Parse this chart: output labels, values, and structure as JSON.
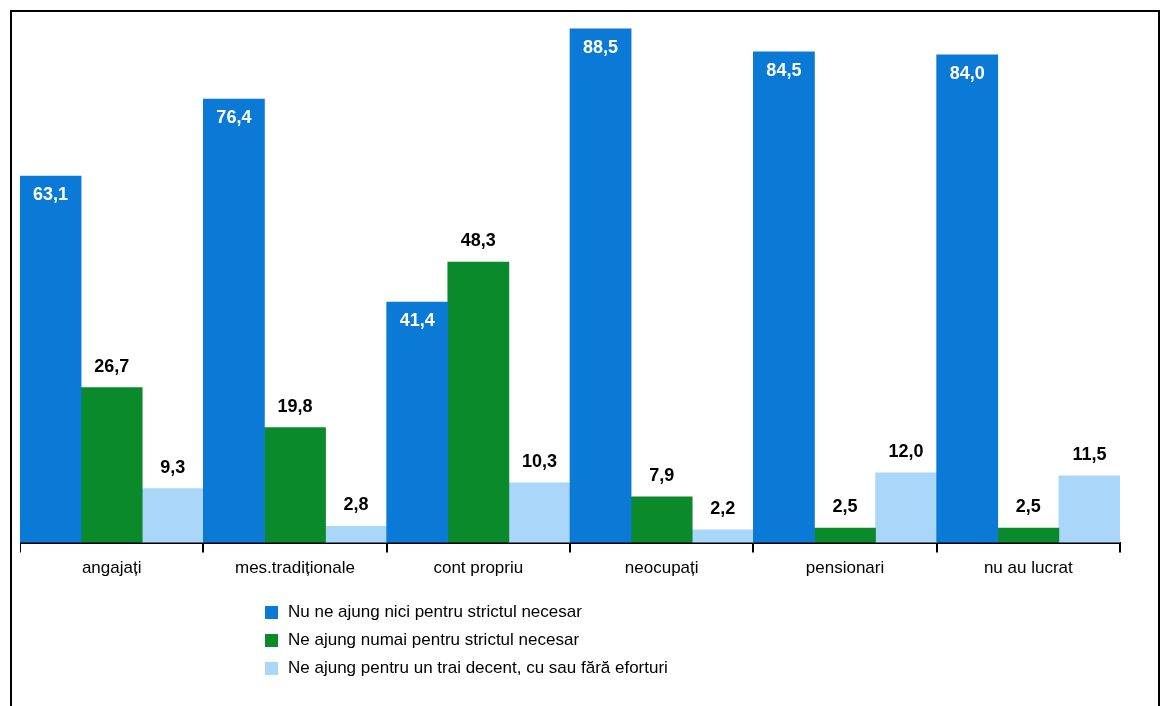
{
  "chart_data": {
    "type": "bar",
    "categories": [
      "angajați",
      "mes.tradiționale",
      "cont propriu",
      "neocupați",
      "pensionari",
      "nu au lucrat"
    ],
    "series": [
      {
        "name": "Nu ne ajung nici pentru strictul necesar",
        "color": "#0a7ad6",
        "values": [
          63.1,
          76.4,
          41.4,
          88.5,
          84.5,
          84.0
        ],
        "value_labels": [
          "63,1",
          "76,4",
          "41,4",
          "88,5",
          "84,5",
          "84,0"
        ]
      },
      {
        "name": "Ne ajung numai pentru strictul necesar",
        "color": "#0a8a2a",
        "values": [
          26.7,
          19.8,
          48.3,
          7.9,
          2.5,
          2.5
        ],
        "value_labels": [
          "26,7",
          "19,8",
          "48,3",
          "7,9",
          "2,5",
          "2,5"
        ]
      },
      {
        "name": "Ne ajung pentru un trai decent, cu sau fără eforturi",
        "color": "#aad6fa",
        "values": [
          9.3,
          2.8,
          10.3,
          2.2,
          12.0,
          11.5
        ],
        "value_labels": [
          "9,3",
          "2,8",
          "10,3",
          "2,2",
          "12,0",
          "11,5"
        ]
      }
    ],
    "grid": false,
    "legend": "bottom",
    "tick_labels": "x"
  }
}
